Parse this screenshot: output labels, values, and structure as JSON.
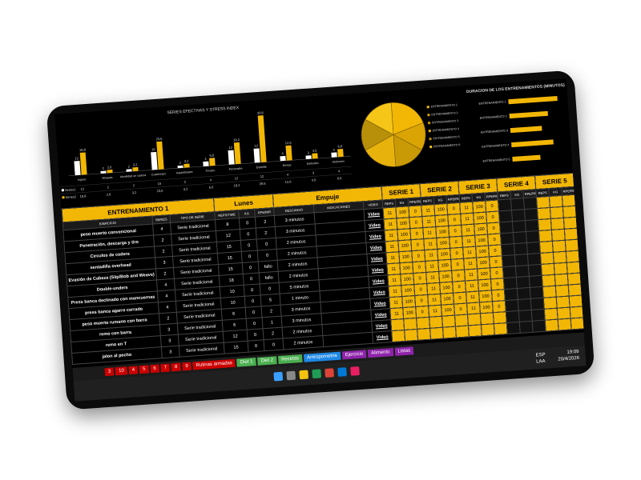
{
  "bar_chart": {
    "type": "bar",
    "title": "SERIES EFECTIVAS Y STRESS INDEX",
    "categories": [
      "Ingeso",
      "Bloques",
      "Movilidad en cadera",
      "Cuadriceps",
      "Isquiotibiales",
      "Triceps",
      "Pectorales",
      "Espalda",
      "Biceps",
      "Deltoides",
      "Abdomen"
    ],
    "series": [
      {
        "name": "Series1",
        "color": "#ffffff",
        "values": [
          12,
          2,
          2,
          15,
          2,
          4,
          12,
          12,
          4,
          3,
          4
        ]
      },
      {
        "name": "Series2",
        "color": "#f2b705",
        "values": [
          18.8,
          2.6,
          3.2,
          23.6,
          3.2,
          6.6,
          18.2,
          39.6,
          12.6,
          4.5,
          6.6
        ],
        "value_labels": [
          "18,8",
          "2,6",
          "3,2",
          "23,6",
          "3,2",
          "6,6",
          "18,2",
          "39,6",
          "12,6",
          "4,5",
          "6,6"
        ]
      }
    ],
    "ylim": [
      0,
      42
    ]
  },
  "pie_chart": {
    "type": "pie",
    "categories": [
      "ENTRENAMIENTO 1",
      "ENTRENAMIENTO 2",
      "ENTRENAMIENTO 3",
      "ENTRENAMIENTO 4",
      "ENTRENAMIENTO 5",
      "ENTRENAMIENTO 6"
    ],
    "values": [
      20,
      14,
      16,
      18,
      16,
      16
    ],
    "colors": [
      "#f2b705",
      "#d9a404",
      "#c99a06",
      "#e8b20c",
      "#b8900a",
      "#f5c518"
    ]
  },
  "hbar_chart": {
    "type": "bar",
    "orientation": "horizontal",
    "title": "DURACION DE LOS ENTRENAMIENTOS (MINUTOS)",
    "categories": [
      "ENTRENAMIENTO 1",
      "ENTRENAMIENTO 2",
      "ENTRENAMIENTO 3",
      "ENTRENAMIENTO 4",
      "ENTRENAMIENTO 5"
    ],
    "values": [
      70,
      55,
      45,
      60,
      40
    ],
    "color": "#f2b705",
    "xlim": [
      0,
      80
    ]
  },
  "table": {
    "title": "ENTRENAMIENTO 1",
    "day": "Lunes",
    "focus": "Empuje",
    "serie_headers": [
      "SERIE 1",
      "SERIE 2",
      "SERIE 3",
      "SERIE 4",
      "SERIE 5"
    ],
    "columns": [
      "EJERCICIO",
      "SERIES",
      "TIPO DE SERIE",
      "REPS/TIME",
      "KG",
      "RPE/RIR",
      "DESCANSO",
      "INDICACIONES",
      "VIDEO"
    ],
    "serie_columns": [
      "REPS",
      "KG",
      "RPE/RIR"
    ],
    "rows": [
      [
        "peso muerto convencional",
        4,
        "Serie tradicional",
        8,
        0,
        2,
        "3 minutos",
        "Video"
      ],
      [
        "Penetración, descarga y tiro",
        2,
        "Serie tradicional",
        12,
        0,
        2,
        "3 minutos",
        "Video"
      ],
      [
        "Circulos de cadera",
        2,
        "Serie tradicional",
        15,
        0,
        0,
        "2 minutos",
        "Video"
      ],
      [
        "sentadilla overhead",
        3,
        "Serie tradicional",
        15,
        0,
        0,
        "2 minutos",
        "Video"
      ],
      [
        "Evasión de Cabeza (Slip/Bob and Weave)",
        2,
        "Serie tradicional",
        15,
        0,
        "fallo",
        "2 minutos",
        "Video"
      ],
      [
        "Double-unders",
        4,
        "Serie tradicional",
        18,
        0,
        "fallo",
        "2 minutos",
        "Video"
      ],
      [
        "Press banca declinado con mancuernas",
        4,
        "Serie tradicional",
        10,
        0,
        0,
        "5 minutos",
        "Video"
      ],
      [
        "press banca agarre cerrado",
        4,
        "Serie tradicional",
        10,
        0,
        5,
        "1 minuto",
        "Video"
      ],
      [
        "peso muerto rumano con barra",
        2,
        "Serie tradicional",
        6,
        0,
        2,
        "3 minutos",
        "Video"
      ],
      [
        "remo con barra",
        3,
        "Serie tradicional",
        6,
        0,
        1,
        "3 minutos",
        "Video"
      ],
      [
        "remo en T",
        3,
        "Serie tradicional",
        12,
        0,
        2,
        "2 minutos",
        "Video"
      ],
      [
        "jalon al pecho",
        3,
        "Serie tradicional",
        15,
        0,
        0,
        "2 minutos",
        "Video"
      ]
    ],
    "serie_values": [
      [
        [
          11,
          100,
          0
        ],
        [
          11,
          100,
          0
        ],
        [
          11,
          100,
          0
        ]
      ],
      [
        [
          11,
          100,
          0
        ],
        [
          11,
          100,
          0
        ],
        [
          11,
          100,
          0
        ]
      ],
      [
        [
          11,
          100,
          0
        ],
        [
          11,
          100,
          0
        ],
        [
          11,
          100,
          0
        ]
      ],
      [
        [
          11,
          100,
          0
        ],
        [
          11,
          100,
          0
        ],
        [
          11,
          100,
          0
        ]
      ],
      [
        [
          11,
          100,
          0
        ],
        [
          11,
          100,
          0
        ],
        [
          11,
          100,
          0
        ]
      ],
      [
        [
          11,
          100,
          0
        ],
        [
          11,
          100,
          0
        ],
        [
          11,
          100,
          0
        ]
      ],
      [
        [
          11,
          100,
          0
        ],
        [
          11,
          100,
          0
        ],
        [
          11,
          100,
          0
        ]
      ],
      [
        [
          11,
          100,
          0
        ],
        [
          11,
          100,
          0
        ],
        [
          11,
          100,
          0
        ]
      ],
      [
        [
          11,
          100,
          0
        ],
        [
          11,
          100,
          0
        ],
        [
          11,
          100,
          0
        ]
      ],
      [
        [
          11,
          100,
          0
        ],
        [
          11,
          100,
          0
        ],
        [
          11,
          100,
          0
        ]
      ]
    ]
  },
  "tabs": [
    "3",
    "10",
    "4",
    "5",
    "6",
    "7",
    "8",
    "9",
    "Rutinas armadas",
    "Diet 1",
    "Diet 2",
    "Recetas",
    "Antropometria",
    "Ejercicio",
    "Alimento",
    "Listas"
  ],
  "taskbar": {
    "language": "ESP",
    "layout": "LAA",
    "time": "19:09",
    "date": "20/4/2026"
  }
}
